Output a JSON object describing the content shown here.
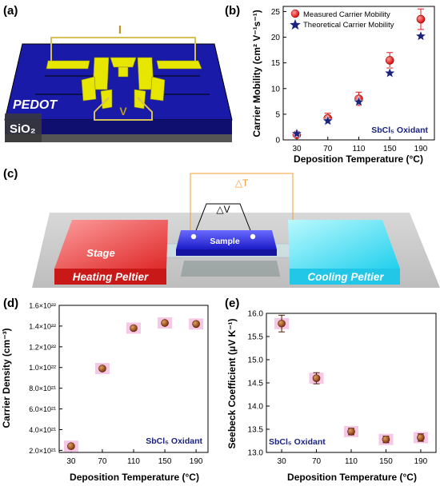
{
  "panel_labels": {
    "a": "(a)",
    "b": "(b)",
    "c": "(c)",
    "d": "(d)",
    "e": "(e)"
  },
  "schematic_a": {
    "current_label": "I",
    "voltage_label": "V",
    "film_label": "PEDOT",
    "substrate_label": "SiO₂"
  },
  "schematic_c": {
    "delta_t_label": "△T",
    "delta_v_label": "△V",
    "sample_label": "Sample",
    "stage_label": "Stage",
    "heating_label": "Heating Peltier",
    "cooling_label": "Cooling Peltier"
  },
  "colors": {
    "measured": "#e8141c",
    "theoretical": "#1a237e",
    "marker_brown": "#8b3a0f",
    "err_bg": "#f7c8e6",
    "oxidant_text": "#1a237e"
  },
  "chart_data": [
    {
      "id": "b",
      "type": "scatter",
      "xlabel": "Deposition Temperature (°C)",
      "ylabel": "Carrier Mobility (cm² V⁻¹s⁻¹)",
      "annotation": "SbCl₅ Oxidant",
      "categories": [
        "30",
        "70",
        "110",
        "150",
        "190"
      ],
      "ylim": [
        0,
        26
      ],
      "yticks": [
        "0",
        "5",
        "10",
        "15",
        "20",
        "25"
      ],
      "legend": "top-left",
      "series": [
        {
          "name": "Measured Carrier Mobility",
          "marker": "circle",
          "values": [
            1.0,
            4.2,
            8.0,
            15.5,
            23.5
          ],
          "errors": [
            0.5,
            1.0,
            1.3,
            1.5,
            2.0
          ]
        },
        {
          "name": "Theoretical Carrier Mobility",
          "marker": "star",
          "values": [
            1.2,
            3.7,
            7.4,
            13.0,
            20.2
          ],
          "errors": [
            0,
            0,
            0,
            0,
            0
          ]
        }
      ]
    },
    {
      "id": "d",
      "type": "scatter",
      "xlabel": "Deposition Temperature (°C)",
      "ylabel": "Carrier Density (cm⁻³)",
      "annotation": "SbCl₅ Oxidant",
      "categories": [
        "30",
        "70",
        "110",
        "150",
        "190"
      ],
      "ylim": [
        1.8e+21,
        1.6e+22
      ],
      "yticks": [
        "2.0×10²¹",
        "4.0×10²¹",
        "6.0×10²¹",
        "8.0×10²¹",
        "1.0×10²²",
        "1.2×10²²",
        "1.4×10²²",
        "1.6×10²²"
      ],
      "series": [
        {
          "values": [
            2.4e+21,
            9.9e+21,
            1.38e+22,
            1.43e+22,
            1.42e+22
          ]
        }
      ]
    },
    {
      "id": "e",
      "type": "scatter",
      "xlabel": "Deposition Temperature (°C)",
      "ylabel": "Seebeck Coefficient (μV K⁻¹)",
      "annotation": "SbCl₅ Oxidant",
      "categories": [
        "30",
        "70",
        "110",
        "150",
        "190"
      ],
      "ylim": [
        13.0,
        16.0
      ],
      "yticks": [
        "13.0",
        "13.5",
        "14.0",
        "14.5",
        "15.0",
        "15.5",
        "16.0"
      ],
      "series": [
        {
          "values": [
            15.78,
            14.6,
            13.45,
            13.28,
            13.32
          ],
          "errors": [
            0.18,
            0.12,
            0.07,
            0.07,
            0.08
          ]
        }
      ]
    }
  ]
}
